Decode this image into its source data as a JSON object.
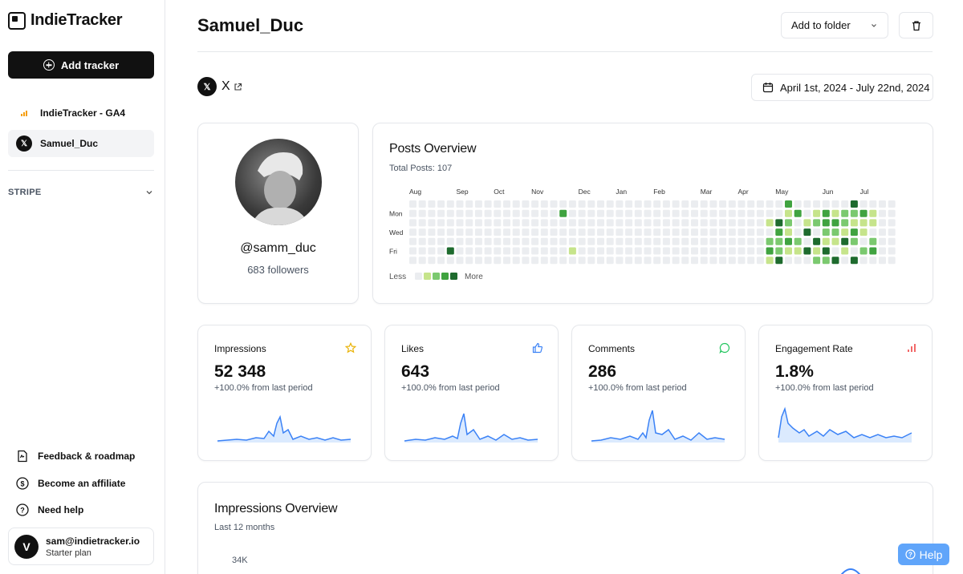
{
  "sidebar": {
    "logo": "IndieTracker",
    "add_tracker": "Add tracker",
    "trackers": [
      {
        "label": "IndieTracker - GA4",
        "icon": "analytics-icon"
      },
      {
        "label": "Samuel_Duc",
        "icon": "x-logo-icon"
      }
    ],
    "section": "STRIPE",
    "links": [
      {
        "label": "Feedback & roadmap",
        "icon": "feedback-icon"
      },
      {
        "label": "Become an affiliate",
        "icon": "dollar-icon"
      },
      {
        "label": "Need help",
        "icon": "help-icon"
      }
    ],
    "user": {
      "initial": "V",
      "email": "sam@indietracker.io",
      "plan": "Starter plan"
    }
  },
  "header": {
    "title": "Samuel_Duc",
    "folder_select": "Add to folder",
    "platform": "X",
    "date_range": "April 1st, 2024 - July 22nd, 2024"
  },
  "profile": {
    "handle": "@samm_duc",
    "followers": "683 followers"
  },
  "posts": {
    "title": "Posts Overview",
    "total": "Total Posts: 107",
    "months": [
      "Aug",
      "Sep",
      "Oct",
      "Nov",
      "Dec",
      "Jan",
      "Feb",
      "Mar",
      "Apr",
      "May",
      "Jun",
      "Jul"
    ],
    "days": [
      "Mon",
      "Wed",
      "Fri"
    ],
    "legend_less": "Less",
    "legend_more": "More",
    "colors": [
      "#ebedf0",
      "#c6e48b",
      "#7bc96f",
      "#40a340",
      "#1e6b2e"
    ]
  },
  "metrics": [
    {
      "title": "Impressions",
      "value": "52 348",
      "delta": "+100.0% from last period",
      "icon": "star-icon",
      "color": "#eab308"
    },
    {
      "title": "Likes",
      "value": "643",
      "delta": "+100.0% from last period",
      "icon": "thumbs-up-icon",
      "color": "#3b82f6"
    },
    {
      "title": "Comments",
      "value": "286",
      "delta": "+100.0% from last period",
      "icon": "comment-icon",
      "color": "#22c55e"
    },
    {
      "title": "Engagement Rate",
      "value": "1.8%",
      "delta": "+100.0% from last period",
      "icon": "bar-chart-icon",
      "color": "#ef4444"
    }
  ],
  "impressions_overview": {
    "title": "Impressions Overview",
    "subtitle": "Last 12 months",
    "y_tick": "34K"
  },
  "help": "Help"
}
